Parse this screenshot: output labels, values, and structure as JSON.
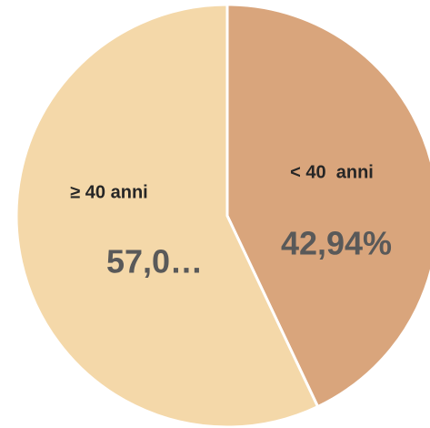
{
  "chart_data": {
    "type": "pie",
    "categories": [
      "< 40  anni",
      "≥ 40 anni"
    ],
    "values": [
      42.94,
      57.06
    ],
    "value_labels": [
      "42,94%",
      "57,0…"
    ],
    "colors": [
      "#d9a57c",
      "#f4d8a9"
    ]
  }
}
